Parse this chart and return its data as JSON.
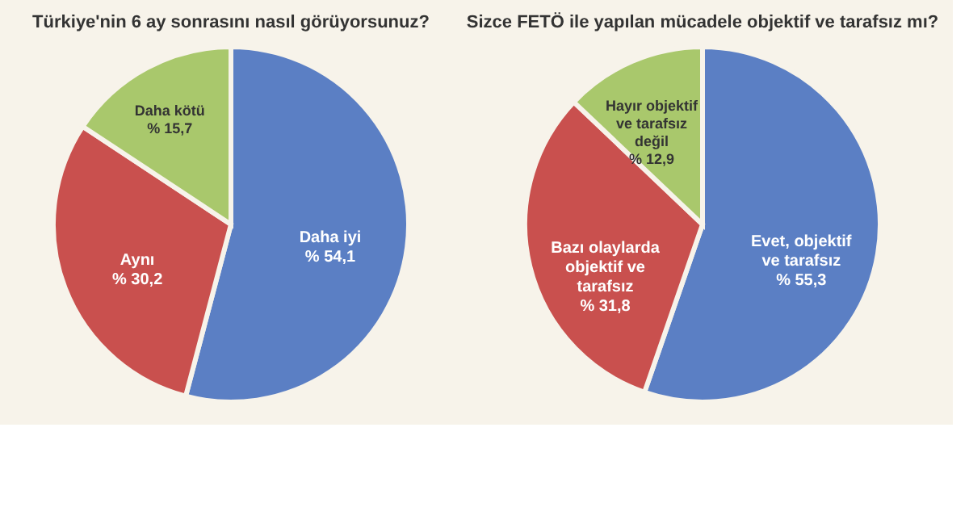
{
  "chart_data": [
    {
      "type": "pie",
      "title": "Türkiye'nin 6 ay sonrasını nasıl görüyorsunuz?",
      "categories": [
        "Daha iyi",
        "Aynı",
        "Daha kötü"
      ],
      "values": [
        54.1,
        30.2,
        15.7
      ],
      "colors": [
        "#5b7fc4",
        "#c9504e",
        "#a9c86c"
      ],
      "value_labels": [
        "% 54,1",
        "% 30,2",
        "% 15,7"
      ],
      "legend": false
    },
    {
      "type": "pie",
      "title": "Sizce FETÖ ile yapılan mücadele objektif ve tarafsız mı?",
      "categories": [
        "Evet, objektif ve tarafsız",
        "Bazı olaylarda objektif ve tarafsız",
        "Hayır objektif ve tarafsız değil"
      ],
      "values": [
        55.3,
        31.8,
        12.9
      ],
      "colors": [
        "#5b7fc4",
        "#c9504e",
        "#a9c86c"
      ],
      "value_labels": [
        "% 55,3",
        "% 31,8",
        "% 12,9"
      ],
      "legend": false
    }
  ]
}
